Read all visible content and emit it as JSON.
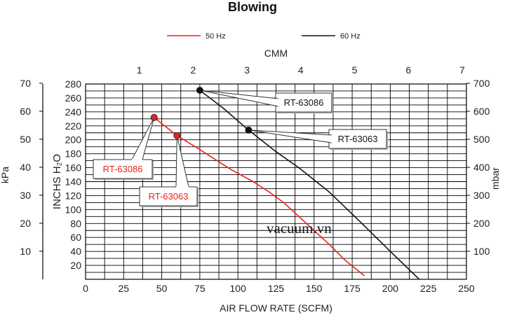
{
  "chart_data": {
    "type": "line",
    "title": "Blowing",
    "xlabel": "AIR FLOW RATE (SCFM)",
    "x2label": "CMM",
    "ylabel": "INCHS H₂O",
    "y_left_outer_label": "kPa",
    "y_right_label": "mbar",
    "xlim": [
      0,
      250
    ],
    "ylim": [
      0,
      280
    ],
    "grid": true,
    "legend_position": "top",
    "x_ticks": [
      "0",
      "25",
      "50",
      "75",
      "100",
      "125",
      "150",
      "175",
      "200",
      "225",
      "250"
    ],
    "x2_ticks": [
      "1",
      "2",
      "3",
      "4",
      "5",
      "6",
      "7"
    ],
    "y_ticks": [
      "20",
      "40",
      "60",
      "80",
      "100",
      "120",
      "140",
      "160",
      "180",
      "200",
      "220",
      "240",
      "260",
      "280"
    ],
    "kpa_ticks": [
      "10",
      "20",
      "30",
      "40",
      "50",
      "60",
      "70"
    ],
    "mbar_ticks": [
      "100",
      "200",
      "300",
      "400",
      "500",
      "600",
      "700"
    ],
    "series": [
      {
        "name": "50 Hz",
        "color": "#e8221c",
        "x": [
          45,
          60,
          75,
          95,
          110,
          120,
          130,
          140,
          150,
          160,
          170,
          183
        ],
        "y": [
          232,
          206,
          186,
          158,
          140,
          126,
          110,
          90,
          70,
          50,
          28,
          5
        ]
      },
      {
        "name": "60 Hz",
        "color": "#111111",
        "x": [
          75,
          90,
          107,
          125,
          140,
          160,
          180,
          200,
          219
        ],
        "y": [
          271,
          246,
          214,
          183,
          160,
          125,
          83,
          40,
          0
        ]
      }
    ],
    "annotations": [
      {
        "text": "RT-63086",
        "series": "60 Hz",
        "point": [
          75,
          271
        ],
        "color": "#111111"
      },
      {
        "text": "RT-63063",
        "series": "60 Hz",
        "point": [
          107,
          214
        ],
        "color": "#111111"
      },
      {
        "text": "RT-63086",
        "series": "50 Hz",
        "point": [
          45,
          232
        ],
        "color": "#e8221c"
      },
      {
        "text": "RT-63063",
        "series": "50 Hz",
        "point": [
          60,
          206
        ],
        "color": "#e8221c"
      }
    ]
  },
  "watermark": "vacuum.vn"
}
